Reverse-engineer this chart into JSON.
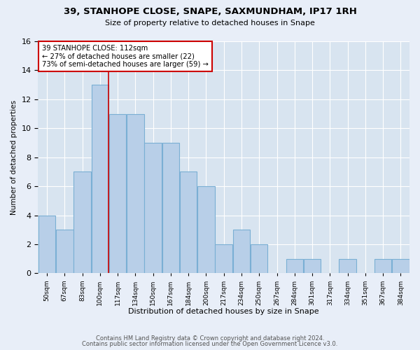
{
  "title": "39, STANHOPE CLOSE, SNAPE, SAXMUNDHAM, IP17 1RH",
  "subtitle": "Size of property relative to detached houses in Snape",
  "xlabel": "Distribution of detached houses by size in Snape",
  "ylabel": "Number of detached properties",
  "bins": [
    "50sqm",
    "67sqm",
    "83sqm",
    "100sqm",
    "117sqm",
    "134sqm",
    "150sqm",
    "167sqm",
    "184sqm",
    "200sqm",
    "217sqm",
    "234sqm",
    "250sqm",
    "267sqm",
    "284sqm",
    "301sqm",
    "317sqm",
    "334sqm",
    "351sqm",
    "367sqm",
    "384sqm"
  ],
  "values": [
    4,
    3,
    7,
    13,
    11,
    11,
    9,
    9,
    7,
    6,
    2,
    3,
    2,
    0,
    1,
    1,
    0,
    1,
    0,
    1,
    1
  ],
  "bar_color": "#b8cfe8",
  "bar_edge_color": "#7aafd4",
  "marker_color": "#cc0000",
  "annotation_title": "39 STANHOPE CLOSE: 112sqm",
  "annotation_line1": "← 27% of detached houses are smaller (22)",
  "annotation_line2": "73% of semi-detached houses are larger (59) →",
  "footer1": "Contains HM Land Registry data © Crown copyright and database right 2024.",
  "footer2": "Contains public sector information licensed under the Open Government Licence v3.0.",
  "ylim": [
    0,
    16
  ],
  "background_color": "#e8eef8",
  "plot_background": "#d8e4f0"
}
